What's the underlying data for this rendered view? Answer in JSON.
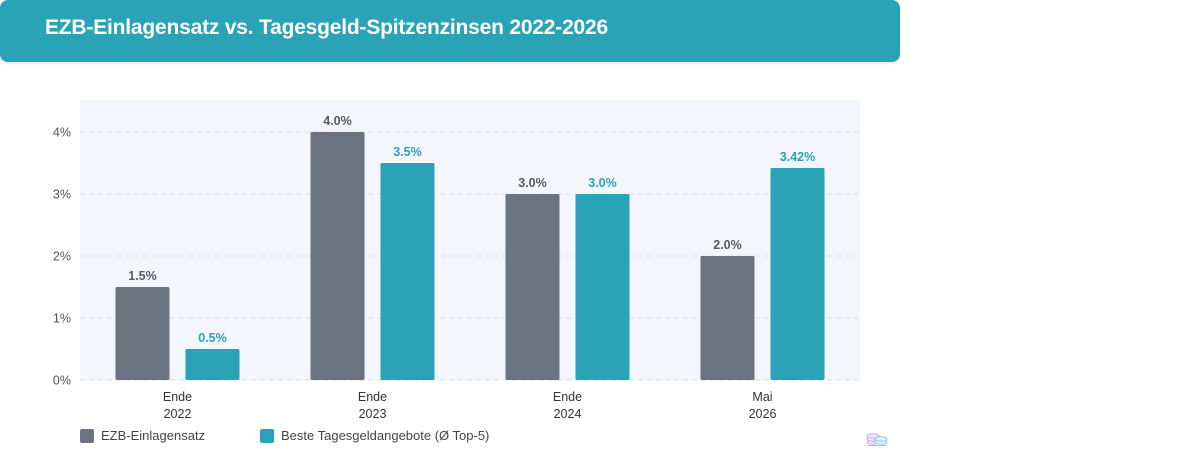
{
  "header": {
    "title": "EZB-Einlagensatz vs. Tagesgeld-Spitzenzinsen 2022-2026"
  },
  "chart_data": {
    "type": "bar",
    "title": "EZB-Einlagensatz vs. Tagesgeld-Spitzenzinsen 2022-2026",
    "categories": [
      [
        "Ende",
        "2022"
      ],
      [
        "Ende",
        "2023"
      ],
      [
        "Ende",
        "2024"
      ],
      [
        "Mai",
        "2026"
      ]
    ],
    "series": [
      {
        "name": "EZB-Einlagensatz",
        "values": [
          1.5,
          4.0,
          3.0,
          2.0
        ],
        "labels": [
          "1.5%",
          "4.0%",
          "3.0%",
          "2.0%"
        ],
        "color": "#6b7280"
      },
      {
        "name": "Beste Tagesgeldangebote (Ø Top-5)",
        "values": [
          0.5,
          3.5,
          3.0,
          3.42
        ],
        "labels": [
          "0.5%",
          "3.5%",
          "3.0%",
          "3.42%"
        ],
        "color": "#2ba3b7"
      }
    ],
    "yticks": [
      "0%",
      "1%",
      "2%",
      "3%",
      "4%"
    ],
    "ylim": [
      0,
      4.4
    ],
    "xlabel": "",
    "ylabel": "",
    "grid": true,
    "legend_position": "bottom-left"
  },
  "colors": {
    "accent": "#2ba3b7",
    "ezb": "#6b7280",
    "plot_background": "#f3f6fd"
  },
  "icons": {
    "footer": "coin-stack-icon"
  }
}
